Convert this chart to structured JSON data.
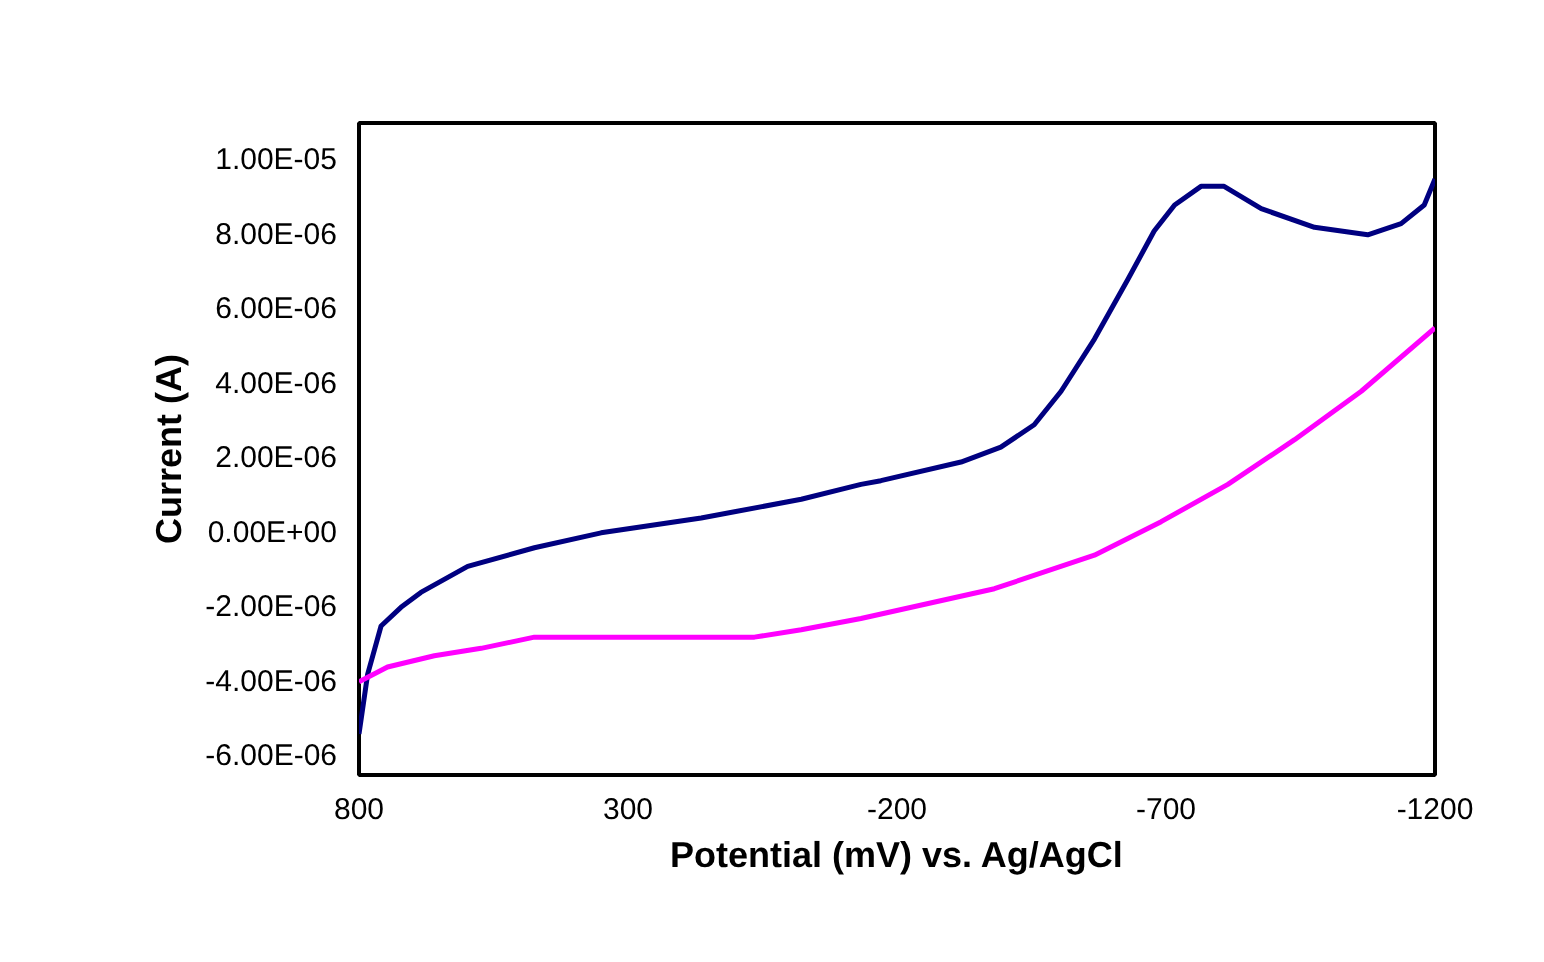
{
  "chart_data": {
    "type": "line",
    "xlabel": "Potential (mV) vs. Ag/AgCl",
    "ylabel": "Current (A)",
    "grid": false,
    "marker": "none",
    "line_style": "solid",
    "xlim": [
      800,
      -1200
    ],
    "xticks": [
      800,
      300,
      -200,
      -700,
      -1200
    ],
    "ylim": [
      -6.5e-06,
      1.1e-05
    ],
    "yticks": [
      {
        "value": -6e-06,
        "label": "-6.00E-06"
      },
      {
        "value": -4e-06,
        "label": "-4.00E-06"
      },
      {
        "value": -2e-06,
        "label": "-2.00E-06"
      },
      {
        "value": 0,
        "label": "0.00E+00"
      },
      {
        "value": 2e-06,
        "label": "2.00E-06"
      },
      {
        "value": 4e-06,
        "label": "4.00E-06"
      },
      {
        "value": 6e-06,
        "label": "6.00E-06"
      },
      {
        "value": 8e-06,
        "label": "8.00E-06"
      },
      {
        "value": 1e-05,
        "label": "1.00E-05"
      }
    ],
    "series": [
      {
        "color": "#000080",
        "x": [
          800,
          784,
          759,
          722,
          685,
          598,
          474,
          350,
          164,
          -22,
          -133,
          -170,
          -319,
          -393,
          -455,
          -505,
          -567,
          -629,
          -678,
          -716,
          -765,
          -808,
          -877,
          -976,
          -1075,
          -1137,
          -1180,
          -1200
        ],
        "values": [
          -5.4e-06,
          -3.8e-06,
          -2.5e-06,
          -2e-06,
          -1.6e-06,
          -9e-07,
          -4e-07,
          0.0,
          4e-07,
          9e-07,
          1.3e-06,
          1.4e-06,
          1.9e-06,
          2.3e-06,
          2.9e-06,
          3.8e-06,
          5.2e-06,
          6.8e-06,
          8.1e-06,
          8.8e-06,
          9.3e-06,
          9.3e-06,
          8.7e-06,
          8.2e-06,
          8e-06,
          8.3e-06,
          8.8e-06,
          9.5e-06
        ]
      },
      {
        "color": "#ff00ff",
        "x": [
          800,
          747,
          660,
          573,
          474,
          65,
          -22,
          -133,
          -381,
          -567,
          -691,
          -815,
          -939,
          -1063,
          -1200
        ],
        "values": [
          -4e-06,
          -3.6e-06,
          -3.3e-06,
          -3.1e-06,
          -2.8e-06,
          -2.8e-06,
          -2.6e-06,
          -2.3e-06,
          -1.5e-06,
          -6e-07,
          3e-07,
          1.3e-06,
          2.5e-06,
          3.8e-06,
          5.5e-06
        ]
      }
    ]
  }
}
